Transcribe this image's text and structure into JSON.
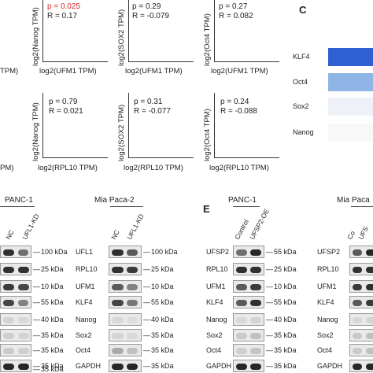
{
  "scatter_row1": {
    "y_labels": [
      "log2(Nanog TPM)",
      "log2(SOX2 TPM)",
      "log2(Oct4 TPM)"
    ],
    "x_label": "log2(UFM1 TPM)",
    "left_fragment": "TPM)",
    "stats": [
      {
        "p": "p = 0.025",
        "r": "R = 0.17",
        "significant": true
      },
      {
        "p": "p = 0.29",
        "r": "R = -0.079",
        "significant": false
      },
      {
        "p": "p = 0.27",
        "r": "R = 0.082",
        "significant": false
      }
    ]
  },
  "scatter_row2": {
    "y_labels": [
      "log2(Nanog TPM)",
      "log2(SOX2 TPM)",
      "log2(Oct4 TPM)"
    ],
    "x_label": "log2(RPL10 TPM)",
    "left_fragment": "PM)",
    "stats": [
      {
        "p": "p = 0.79",
        "r": "R = 0.021",
        "significant": false
      },
      {
        "p": "p = 0.31",
        "r": "R = -0.077",
        "significant": false
      },
      {
        "p": "p = 0.24",
        "r": "R = -0.088",
        "significant": false
      }
    ]
  },
  "panel_c": {
    "letter": "C",
    "rows": [
      {
        "label": "KLF4",
        "color": "#2f5fd0"
      },
      {
        "label": "Oct4",
        "color": "#8fb4e6"
      },
      {
        "label": "Sox2",
        "color": "#eef2f8"
      },
      {
        "label": "Nanog",
        "color": "#f8f8f8"
      }
    ]
  },
  "panel_d": {
    "left": {
      "title": "PANC-1",
      "lanes": [
        "NC",
        "UFL1-KD"
      ],
      "kda": [
        "100 kDa",
        "25 kDa",
        "10 kDa",
        "55 kDa",
        "40 kDa",
        "35 kDa",
        "35 kDa",
        "35 kDa",
        "35 kDa"
      ]
    },
    "right": {
      "title": "Mia Paca-2",
      "lanes": [
        "NC",
        "UFL1-KD"
      ],
      "labels": [
        "UFL1",
        "RPL10",
        "UFM1",
        "KLF4",
        "Nanog",
        "Sox2",
        "Oct4",
        "GAPDH"
      ],
      "kda": [
        "100 kDa",
        "25 kDa",
        "10 kDa",
        "55 kDa",
        "40 kDa",
        "35 kDa",
        "35 kDa",
        "35 kDa"
      ]
    }
  },
  "panel_e": {
    "letter": "E",
    "left": {
      "title": "PANC-1",
      "lanes": [
        "Control",
        "UFSP2-OE"
      ],
      "labels": [
        "UFSP2",
        "RPL10",
        "UFM1",
        "KLF4",
        "Nanog",
        "Sox2",
        "Oct4",
        "GAPDH"
      ],
      "kda": [
        "55 kDa",
        "25 kDa",
        "10 kDa",
        "55 kDa",
        "40 kDa",
        "35 kDa",
        "35 kDa",
        "35 kDa"
      ]
    },
    "right": {
      "title": "Mia Paca",
      "lanes": [
        "Co",
        "UFS"
      ],
      "labels": [
        "UFSP2",
        "RPL10",
        "UFM1",
        "KLF4",
        "Nanog",
        "Sox2",
        "Oct4",
        "GAPDH"
      ]
    }
  }
}
